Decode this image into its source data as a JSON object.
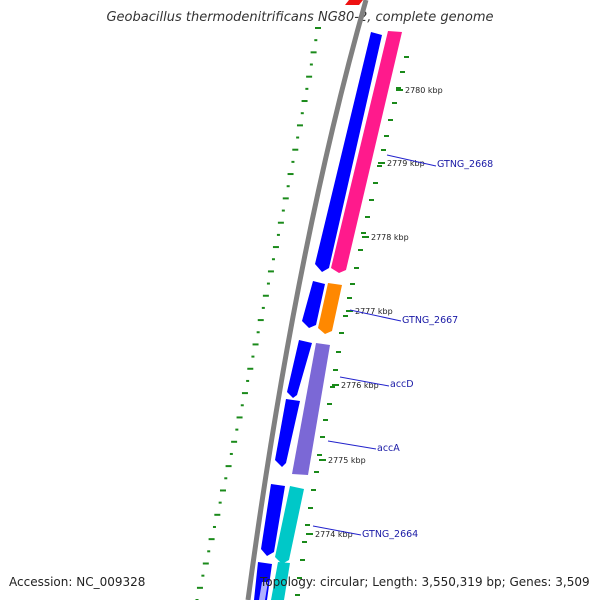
{
  "title": "Geobacillus thermodenitrificans NG80-2, complete genome",
  "footer": {
    "accession": "Accession: NC_009328",
    "summary": "Topology: circular; Length: 3,550,319 bp; Genes: 3,509"
  },
  "colors": {
    "backbone": "#808080",
    "cds_dark": "#0000ff",
    "ticks": "#1a8a1a",
    "label_line": "#2222cc"
  },
  "ticks": [
    {
      "label": "2780 kbp"
    },
    {
      "label": "2779 kbp"
    },
    {
      "label": "2778 kbp"
    },
    {
      "label": "2777 kbp"
    },
    {
      "label": "2776 kbp"
    },
    {
      "label": "2775 kbp"
    },
    {
      "label": "2774 kbp"
    }
  ],
  "genes": [
    {
      "label": "GTNG_2668",
      "color": "#ff1a8c"
    },
    {
      "label": "GTNG_2667",
      "color": "#ff8800"
    },
    {
      "label": "accD",
      "color": "#7b68d6"
    },
    {
      "label": "accA",
      "color": "#7b68d6"
    },
    {
      "label": "GTNG_2664",
      "color": "#00c8c8"
    }
  ]
}
